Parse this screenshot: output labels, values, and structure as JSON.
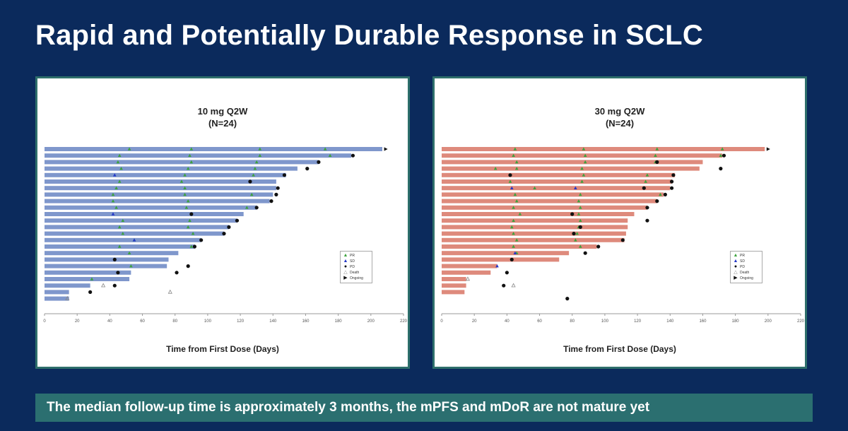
{
  "title": "Rapid and Potentially Durable Response in SCLC",
  "footer": "The median follow-up time is approximately 3 months, the mPFS and mDoR are not mature yet",
  "colors": {
    "background": "#0b2a5c",
    "panel_border": "#2e6f6b",
    "banner": "#2b6f70",
    "bar_10mg": "#7f97cc",
    "bar_30mg": "#de8a7c",
    "pr": "#3da23d",
    "sd": "#2336c8",
    "pd": "#111111",
    "death": "#888888",
    "ongoing": "#111111"
  },
  "legend_labels": {
    "pr": "PR",
    "sd": "SD",
    "pd": "PD",
    "death": "Death",
    "ongoing": "Ongoing"
  },
  "chart_data": [
    {
      "type": "swimmer",
      "title": "10 mg Q2W",
      "subtitle": "(N=24)",
      "xlabel": "Time from First Dose (Days)",
      "xlim": [
        0,
        220
      ],
      "xticks": [
        0,
        20,
        40,
        60,
        80,
        100,
        120,
        140,
        160,
        180,
        200,
        220
      ],
      "grid": false,
      "legend_position": "right",
      "subjects": [
        {
          "days": 207,
          "pr": [
            52,
            90,
            132,
            172
          ],
          "sd": [],
          "pd": [],
          "death": [],
          "ongoing": 209
        },
        {
          "days": 188,
          "pr": [
            46,
            89,
            132,
            175
          ],
          "sd": [],
          "pd": [
            189
          ],
          "death": [],
          "ongoing": null
        },
        {
          "days": 168,
          "pr": [
            45,
            90,
            130
          ],
          "sd": [],
          "pd": [
            168
          ],
          "death": [],
          "ongoing": null
        },
        {
          "days": 155,
          "pr": [
            47,
            88,
            129
          ],
          "sd": [],
          "pd": [
            161
          ],
          "death": [],
          "ongoing": null
        },
        {
          "days": 148,
          "pr": [
            86,
            128
          ],
          "sd": [
            43
          ],
          "pd": [
            147
          ],
          "death": [],
          "ongoing": null
        },
        {
          "days": 142,
          "pr": [
            46,
            84
          ],
          "sd": [],
          "pd": [
            126
          ],
          "death": [],
          "ongoing": null
        },
        {
          "days": 142,
          "pr": [
            44,
            86
          ],
          "sd": [],
          "pd": [
            143
          ],
          "death": [],
          "ongoing": null
        },
        {
          "days": 140,
          "pr": [
            42,
            86,
            127
          ],
          "sd": [],
          "pd": [
            142
          ],
          "death": [],
          "ongoing": null
        },
        {
          "days": 138,
          "pr": [
            42,
            88
          ],
          "sd": [],
          "pd": [
            139
          ],
          "death": [],
          "ongoing": null
        },
        {
          "days": 130,
          "pr": [
            44,
            87,
            124
          ],
          "sd": [],
          "pd": [
            130
          ],
          "death": [],
          "ongoing": null
        },
        {
          "days": 122,
          "pr": [],
          "sd": [
            42
          ],
          "pd": [
            90
          ],
          "death": [],
          "ongoing": null
        },
        {
          "days": 118,
          "pr": [
            48,
            89
          ],
          "sd": [],
          "pd": [
            118
          ],
          "death": [],
          "ongoing": null
        },
        {
          "days": 113,
          "pr": [
            46,
            88
          ],
          "sd": [],
          "pd": [
            113
          ],
          "death": [],
          "ongoing": null
        },
        {
          "days": 110,
          "pr": [
            48,
            91
          ],
          "sd": [],
          "pd": [
            110
          ],
          "death": [],
          "ongoing": null
        },
        {
          "days": 96,
          "pr": [
            55
          ],
          "sd": [
            55
          ],
          "pd": [
            96
          ],
          "death": [],
          "ongoing": null
        },
        {
          "days": 92,
          "pr": [
            46,
            90
          ],
          "sd": [],
          "pd": [
            92
          ],
          "death": [],
          "ongoing": null
        },
        {
          "days": 82,
          "pr": [
            52
          ],
          "sd": [],
          "pd": [],
          "death": [],
          "ongoing": null
        },
        {
          "days": 76,
          "pr": [],
          "sd": [],
          "pd": [
            43
          ],
          "death": [],
          "ongoing": null
        },
        {
          "days": 75,
          "pr": [
            53
          ],
          "sd": [],
          "pd": [
            88
          ],
          "death": [],
          "ongoing": null
        },
        {
          "days": 53,
          "pr": [],
          "sd": [],
          "pd": [
            45,
            81
          ],
          "death": [],
          "ongoing": null
        },
        {
          "days": 52,
          "pr": [
            29
          ],
          "sd": [],
          "pd": [],
          "death": [],
          "ongoing": null
        },
        {
          "days": 28,
          "pr": [],
          "sd": [],
          "pd": [
            43
          ],
          "death": [
            36
          ],
          "ongoing": null
        },
        {
          "days": 15,
          "pr": [],
          "sd": [],
          "pd": [
            28
          ],
          "death": [
            77
          ],
          "ongoing": null
        },
        {
          "days": 15,
          "pr": [],
          "sd": [],
          "pd": [],
          "death": [
            14
          ],
          "ongoing": null
        }
      ]
    },
    {
      "type": "swimmer",
      "title": "30 mg Q2W",
      "subtitle": "(N=24)",
      "xlabel": "Time from First Dose (Days)",
      "xlim": [
        0,
        220
      ],
      "xticks": [
        0,
        20,
        40,
        60,
        80,
        100,
        120,
        140,
        160,
        180,
        200,
        220
      ],
      "grid": false,
      "legend_position": "right",
      "subjects": [
        {
          "days": 198,
          "pr": [
            45,
            87,
            132,
            172
          ],
          "sd": [],
          "pd": [],
          "death": [],
          "ongoing": 200
        },
        {
          "days": 172,
          "pr": [
            44,
            88,
            131,
            171
          ],
          "sd": [],
          "pd": [
            173
          ],
          "death": [],
          "ongoing": null
        },
        {
          "days": 160,
          "pr": [
            46,
            88,
            131
          ],
          "sd": [],
          "pd": [
            132
          ],
          "death": [],
          "ongoing": null
        },
        {
          "days": 158,
          "pr": [
            33,
            46,
            86
          ],
          "sd": [],
          "pd": [
            171
          ],
          "death": [],
          "ongoing": null
        },
        {
          "days": 143,
          "pr": [
            87,
            126
          ],
          "sd": [],
          "pd": [
            42,
            142
          ],
          "death": [],
          "ongoing": null
        },
        {
          "days": 141,
          "pr": [
            42,
            86,
            125
          ],
          "sd": [],
          "pd": [
            141
          ],
          "death": [],
          "ongoing": null
        },
        {
          "days": 140,
          "pr": [
            57
          ],
          "sd": [
            43,
            82
          ],
          "pd": [
            124,
            141
          ],
          "death": [],
          "ongoing": null
        },
        {
          "days": 136,
          "pr": [
            45,
            85,
            134
          ],
          "sd": [],
          "pd": [
            137
          ],
          "death": [],
          "ongoing": null
        },
        {
          "days": 132,
          "pr": [
            46,
            84
          ],
          "sd": [],
          "pd": [
            132
          ],
          "death": [],
          "ongoing": null
        },
        {
          "days": 126,
          "pr": [
            44,
            85
          ],
          "sd": [],
          "pd": [
            126
          ],
          "death": [],
          "ongoing": null
        },
        {
          "days": 118,
          "pr": [
            48,
            84
          ],
          "sd": [],
          "pd": [
            80
          ],
          "death": [],
          "ongoing": null
        },
        {
          "days": 114,
          "pr": [
            44,
            85
          ],
          "sd": [],
          "pd": [
            126
          ],
          "death": [],
          "ongoing": null
        },
        {
          "days": 114,
          "pr": [
            43,
            84
          ],
          "sd": [],
          "pd": [
            85
          ],
          "death": [],
          "ongoing": null
        },
        {
          "days": 113,
          "pr": [
            44,
            83
          ],
          "sd": [],
          "pd": [
            81
          ],
          "death": [],
          "ongoing": null
        },
        {
          "days": 112,
          "pr": [
            46,
            82
          ],
          "sd": [],
          "pd": [
            111
          ],
          "death": [],
          "ongoing": null
        },
        {
          "days": 95,
          "pr": [
            44,
            85
          ],
          "sd": [],
          "pd": [
            96
          ],
          "death": [],
          "ongoing": null
        },
        {
          "days": 78,
          "pr": [
            46
          ],
          "sd": [
            45
          ],
          "pd": [
            88
          ],
          "death": [],
          "ongoing": null
        },
        {
          "days": 72,
          "pr": [],
          "sd": [],
          "pd": [
            43
          ],
          "death": [],
          "ongoing": null
        },
        {
          "days": 34,
          "pr": [],
          "sd": [
            34
          ],
          "pd": [],
          "death": [],
          "ongoing": null
        },
        {
          "days": 30,
          "pr": [],
          "sd": [],
          "pd": [
            40
          ],
          "death": [],
          "ongoing": null
        },
        {
          "days": 15,
          "pr": [],
          "sd": [],
          "pd": [],
          "death": [
            16
          ],
          "ongoing": null
        },
        {
          "days": 15,
          "pr": [],
          "sd": [],
          "pd": [
            38
          ],
          "death": [
            44
          ],
          "ongoing": null
        },
        {
          "days": 14,
          "pr": [],
          "sd": [],
          "pd": [],
          "death": [],
          "ongoing": null
        },
        {
          "days": 0,
          "pr": [],
          "sd": [],
          "pd": [
            77
          ],
          "death": [],
          "ongoing": null
        }
      ]
    }
  ]
}
